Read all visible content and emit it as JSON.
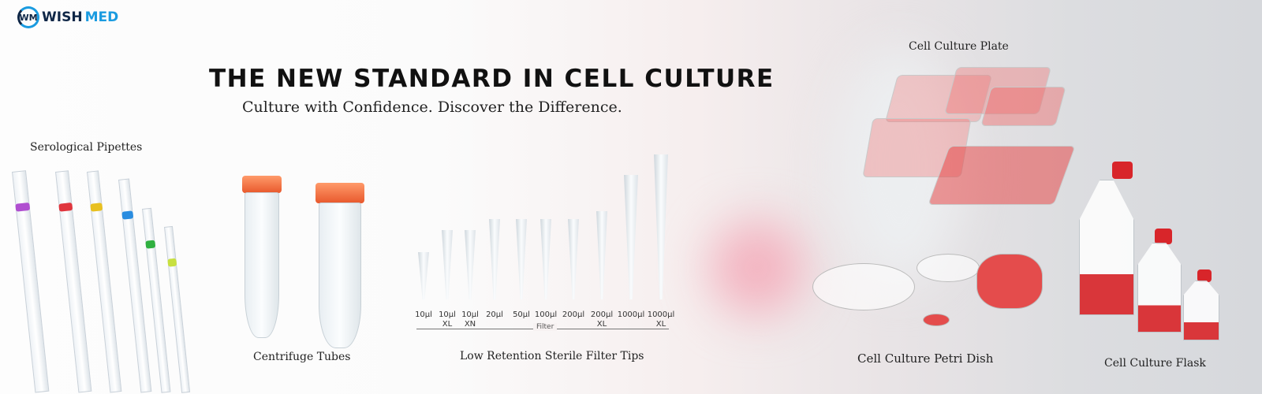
{
  "brand": {
    "logo_text_dark": "WISH",
    "logo_text_light": "MED",
    "logo_mark": "WM",
    "colors": {
      "navy": "#0f2747",
      "blue": "#1a9be0"
    }
  },
  "hero": {
    "title": "THE NEW STANDARD IN CELL CULTURE",
    "subtitle": "Culture with Confidence. Discover the Difference."
  },
  "products": {
    "pipettes": "Serological Pipettes",
    "tubes": "Centrifuge Tubes",
    "tips": "Low Retention Sterile Filter Tips",
    "plate": "Cell Culture Plate",
    "petri": "Cell Culture Petri Dish",
    "flask": "Cell Culture Flask"
  },
  "tips": {
    "sizes": [
      [
        "10µl",
        ""
      ],
      [
        "10µl",
        "XL"
      ],
      [
        "10µl",
        "XN"
      ],
      [
        "20µl",
        ""
      ],
      [
        "50µl",
        ""
      ],
      [
        "100µl",
        ""
      ],
      [
        "200µl",
        ""
      ],
      [
        "200µl",
        "XL"
      ],
      [
        "1000µl",
        ""
      ],
      [
        "1000µl",
        "XL"
      ]
    ],
    "filter_label": "Filter"
  },
  "accent": "#e8582c"
}
